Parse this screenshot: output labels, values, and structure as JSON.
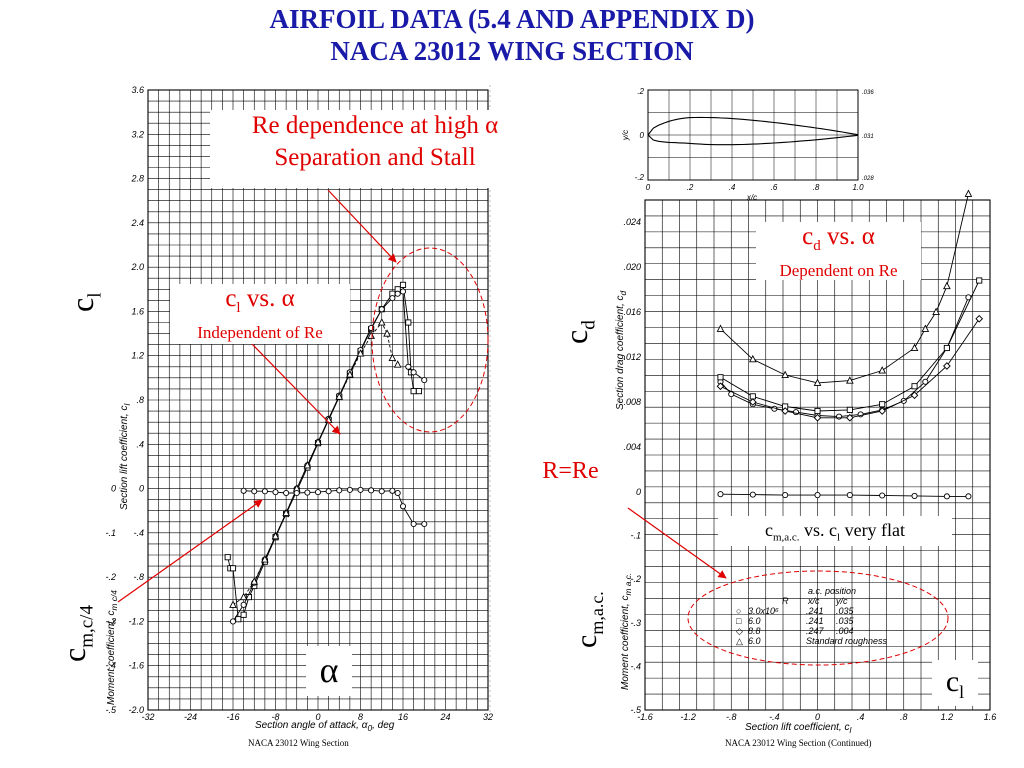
{
  "slide": {
    "title_line1": "AIRFOIL DATA (5.4 AND APPENDIX D)",
    "title_line2": "NACA 23012 WING SECTION"
  },
  "annotations": {
    "re_dependence_line1": "Re dependence at high α",
    "re_dependence_line2": "Separation and Stall",
    "cl_vs_alpha": "c",
    "cl_vs_alpha_sub": "l",
    "cl_vs_alpha_rest": " vs. α",
    "independent": "Independent of Re",
    "cd_vs_alpha": "c",
    "cd_vs_alpha_sub": "d",
    "cd_vs_alpha_rest": " vs. α",
    "dependent": "Dependent on Re",
    "r_eq_re": "R=Re",
    "cm_flat_pre": "c",
    "cm_flat_sub": "m,a.c.",
    "cm_flat_mid": " vs. c",
    "cm_flat_sub2": "l",
    "cm_flat_post": " very flat"
  },
  "symbols": {
    "cl": "c",
    "cl_sub": "l",
    "cd": "c",
    "cd_sub": "d",
    "cm_c4": "c",
    "cm_c4_sub": "m,c/4",
    "cm_ac": "c",
    "cm_ac_sub": "m,a.c.",
    "alpha": "α",
    "cl_bottom": "c",
    "cl_bottom_sub": "l"
  },
  "left_chart_text": {
    "y_label_lift": "Section lift coefficient, c",
    "y_label_lift_sub": "l",
    "y_label_moment": "Moment coefficient, c",
    "y_label_moment_sub": "m c/4",
    "x_label": "Section angle of attack, α",
    "x_label_sub": "0",
    "x_label_unit": ", deg",
    "caption": "NACA 23012 Wing Section"
  },
  "right_chart_text": {
    "x_label": "Section lift coefficient, c",
    "x_label_sub": "l",
    "y_label_drag": "Section drag coefficient, c",
    "y_label_drag_sub": "d",
    "y_label_moment": "Moment coefficient, c",
    "y_label_moment_sub": "m a.c.",
    "caption": "NACA 23012 Wing Section (Continued)",
    "profile_xlabel": "x/c",
    "profile_ylabel": "y/c",
    "profile_ticks_x": [
      "0",
      ".2",
      ".4",
      ".6",
      ".8",
      "1.0"
    ],
    "profile_ticks_y": [
      ".2",
      "0",
      "-.2"
    ],
    "profile_right_ticks": [
      ".036",
      ".031",
      ".028"
    ]
  },
  "legend": {
    "header_r": "R",
    "header_ac": "a.c. position",
    "header_xc": "x/c",
    "header_yc": "y/c",
    "rows": [
      {
        "marker": "circle",
        "r": "3.0x10⁶",
        "xc": ".241",
        "yc": ".035"
      },
      {
        "marker": "square",
        "r": "6.0",
        "xc": ".241",
        "yc": ".035"
      },
      {
        "marker": "diamond",
        "r": "8.8",
        "xc": ".247",
        "yc": ".004"
      },
      {
        "marker": "triangle",
        "r": "6.0",
        "xc": "Standard roughness",
        "yc": ""
      }
    ]
  },
  "colors": {
    "title": "#1a1aa8",
    "annotation": "#e00000",
    "grid": "#000000"
  },
  "chart_data": [
    {
      "type": "line",
      "name": "lift-and-moment-vs-alpha",
      "x_axis": {
        "ticks": [
          -32,
          -24,
          -16,
          -8,
          0,
          8,
          16,
          24,
          32
        ],
        "xlim": [
          -32,
          32
        ]
      },
      "y_axis_lift": {
        "ticks": [
          0,
          0.4,
          0.8,
          1.2,
          1.6,
          2.0,
          2.4,
          2.8,
          3.2,
          3.6
        ],
        "tick_labels": [
          ".4",
          ".8",
          "1.2",
          "1.6",
          "2.0",
          "2.4",
          "2.8",
          "3.2",
          "3.6"
        ],
        "ylim": [
          -2.0,
          3.6
        ]
      },
      "y_axis_moment": {
        "ticks": [
          0,
          -0.1,
          -0.2,
          -0.3,
          -0.4,
          -0.5
        ],
        "tick_labels": [
          "0",
          "-.1",
          "-.2",
          "-.3",
          "-.4",
          "-.5"
        ]
      },
      "y_axis_left_lift_ticks": [
        "-.4",
        "-.8",
        "-1.2",
        "-1.6",
        "-2.0"
      ],
      "series": [
        {
          "marker": "square",
          "alpha": [
            -17,
            -16.5,
            -16,
            -15,
            -14,
            -13,
            -12,
            -10,
            -8,
            -6,
            -4,
            -2,
            0,
            2,
            4,
            6,
            8,
            10,
            12,
            14,
            15,
            16,
            17,
            17.5,
            18,
            19
          ],
          "cl": [
            -0.62,
            -0.72,
            -0.72,
            -1.18,
            -1.14,
            -0.98,
            -0.88,
            -0.66,
            -0.44,
            -0.23,
            -0.02,
            0.19,
            0.41,
            0.62,
            0.83,
            1.04,
            1.24,
            1.44,
            1.62,
            1.76,
            1.8,
            1.84,
            1.5,
            1.05,
            0.88,
            0.88
          ]
        },
        {
          "marker": "circle",
          "alpha": [
            -16,
            -14,
            -12,
            -10,
            -8,
            -6,
            -4,
            -2,
            0,
            2,
            4,
            6,
            8,
            10,
            12,
            14,
            15,
            16,
            17,
            18,
            20
          ],
          "cl": [
            -1.2,
            -1.05,
            -0.85,
            -0.64,
            -0.43,
            -0.22,
            0.0,
            0.21,
            0.42,
            0.63,
            0.84,
            1.05,
            1.25,
            1.45,
            1.62,
            1.72,
            1.76,
            1.78,
            1.1,
            1.05,
            0.98
          ]
        },
        {
          "marker": "triangle",
          "alpha": [
            -16,
            -14,
            -12,
            -10,
            -8,
            -6,
            -4,
            -2,
            0,
            2,
            4,
            6,
            8,
            10,
            12,
            13,
            14,
            15
          ],
          "cl": [
            -1.05,
            -0.98,
            -0.84,
            -0.64,
            -0.43,
            -0.22,
            0.0,
            0.21,
            0.42,
            0.62,
            0.83,
            1.03,
            1.22,
            1.38,
            1.5,
            1.4,
            1.18,
            1.12
          ]
        },
        {
          "name": "cm_c4",
          "marker": "circle",
          "alpha": [
            -14,
            -12,
            -10,
            -8,
            -6,
            -4,
            -2,
            0,
            2,
            4,
            6,
            8,
            10,
            12,
            14,
            15,
            16,
            18,
            20
          ],
          "cm": [
            -0.005,
            -0.006,
            -0.006,
            -0.008,
            -0.01,
            -0.01,
            -0.009,
            -0.008,
            -0.006,
            -0.004,
            -0.003,
            -0.003,
            -0.004,
            -0.006,
            -0.005,
            -0.01,
            -0.04,
            -0.08,
            -0.08
          ]
        }
      ]
    },
    {
      "type": "line",
      "name": "drag-and-moment-vs-cl",
      "x_axis": {
        "ticks": [
          -1.6,
          -1.2,
          -0.8,
          -0.4,
          0,
          0.4,
          0.8,
          1.2,
          1.6
        ],
        "tick_labels": [
          "-1.6",
          "-1.2",
          "-.8",
          "-.4",
          "0",
          ".4",
          ".8",
          "1.2",
          "1.6"
        ],
        "xlim": [
          -1.6,
          1.6
        ]
      },
      "y_axis_drag": {
        "ticks": [
          0,
          0.004,
          0.008,
          0.012,
          0.016,
          0.02,
          0.024
        ],
        "tick_labels": [
          "0",
          ".004",
          ".008",
          ".012",
          ".016",
          ".020",
          ".024"
        ]
      },
      "y_axis_moment": {
        "ticks": [
          -0.1,
          -0.2,
          -0.3,
          -0.4,
          -0.5
        ],
        "tick_labels": [
          "-.1",
          "-.2",
          "-.3",
          "-.4",
          "-.5"
        ]
      },
      "series": [
        {
          "marker": "triangle",
          "cl": [
            -0.9,
            -0.6,
            -0.3,
            0.0,
            0.3,
            0.6,
            0.9,
            1.0,
            1.1,
            1.2,
            1.4
          ],
          "cd": [
            0.0145,
            0.0118,
            0.0104,
            0.0097,
            0.0099,
            0.0108,
            0.0128,
            0.0145,
            0.016,
            0.0183,
            0.0265
          ]
        },
        {
          "marker": "circle",
          "cl": [
            -0.9,
            -0.8,
            -0.6,
            -0.4,
            -0.2,
            0.0,
            0.2,
            0.4,
            0.6,
            0.8,
            1.0,
            1.2,
            1.4
          ],
          "cd": [
            0.0098,
            0.0087,
            0.0078,
            0.0074,
            0.0071,
            0.0068,
            0.0067,
            0.0069,
            0.0073,
            0.0081,
            0.0098,
            0.0128,
            0.0173
          ]
        },
        {
          "marker": "square",
          "cl": [
            -0.9,
            -0.6,
            -0.3,
            0.0,
            0.3,
            0.6,
            0.9,
            1.2,
            1.5
          ],
          "cd": [
            0.0102,
            0.0085,
            0.0076,
            0.0072,
            0.0073,
            0.0078,
            0.0094,
            0.0128,
            0.0188
          ]
        },
        {
          "marker": "diamond",
          "cl": [
            -0.9,
            -0.6,
            -0.3,
            0.0,
            0.3,
            0.6,
            0.9,
            1.2,
            1.5
          ],
          "cd": [
            0.0094,
            0.008,
            0.0072,
            0.0066,
            0.0066,
            0.0072,
            0.0086,
            0.0112,
            0.0154
          ]
        },
        {
          "name": "cm_ac",
          "marker": "circle",
          "cl": [
            -0.9,
            -0.6,
            -0.3,
            0.0,
            0.3,
            0.6,
            0.9,
            1.2,
            1.4
          ],
          "cm": [
            -0.005,
            -0.006,
            -0.007,
            -0.007,
            -0.007,
            -0.008,
            -0.009,
            -0.01,
            -0.01
          ]
        }
      ]
    }
  ]
}
